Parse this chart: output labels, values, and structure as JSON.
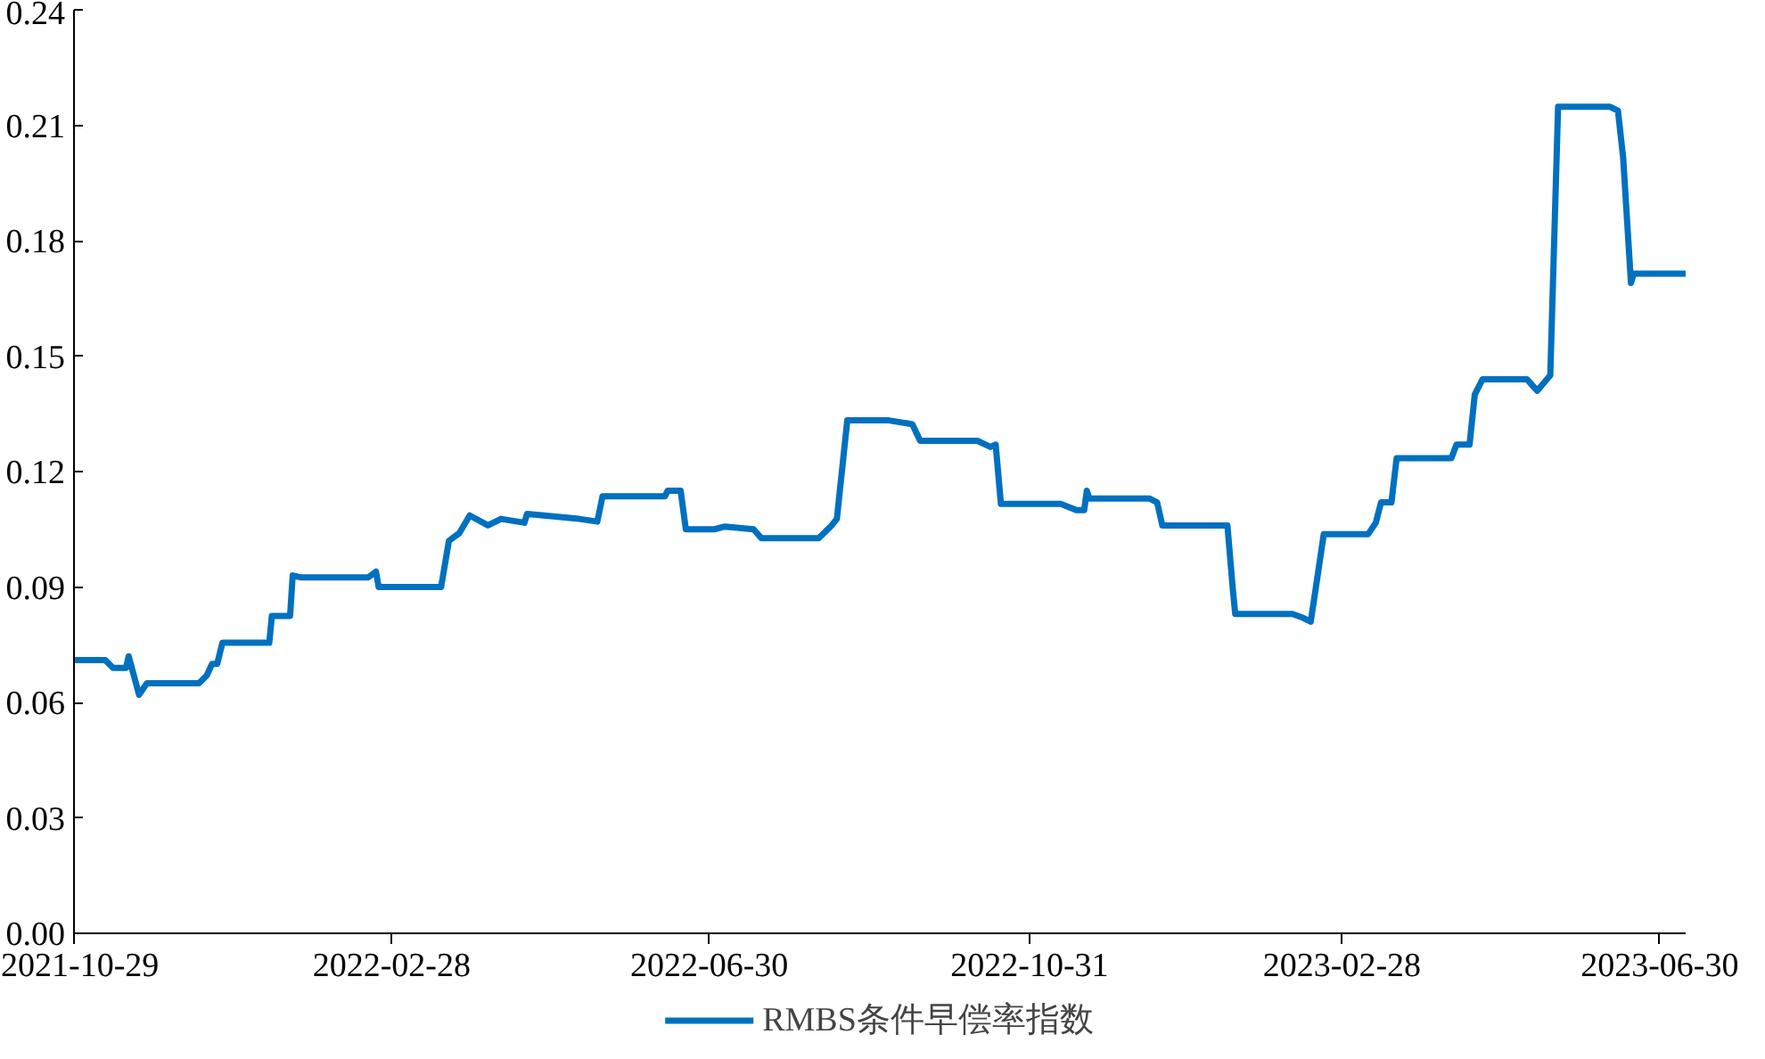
{
  "chart_data": {
    "type": "line",
    "x": [
      "2021-10-29",
      "2021-11-10",
      "2021-11-13",
      "2021-11-18",
      "2021-11-19",
      "2021-11-23",
      "2021-11-26",
      "2021-12-16",
      "2021-12-19",
      "2021-12-21",
      "2021-12-23",
      "2021-12-25",
      "2022-01-12",
      "2022-01-13",
      "2022-01-20",
      "2022-01-21",
      "2022-01-24",
      "2022-02-19",
      "2022-02-22",
      "2022-02-23",
      "2022-03-10",
      "2022-03-19",
      "2022-03-22",
      "2022-03-26",
      "2022-03-30",
      "2022-04-06",
      "2022-04-11",
      "2022-04-20",
      "2022-04-21",
      "2022-05-11",
      "2022-05-18",
      "2022-05-20",
      "2022-06-13",
      "2022-06-14",
      "2022-06-19",
      "2022-06-21",
      "2022-07-02",
      "2022-07-06",
      "2022-07-17",
      "2022-07-20",
      "2022-08-11",
      "2022-08-16",
      "2022-08-18",
      "2022-08-22",
      "2022-09-07",
      "2022-09-16",
      "2022-09-19",
      "2022-10-11",
      "2022-10-16",
      "2022-10-18",
      "2022-10-20",
      "2022-11-12",
      "2022-11-18",
      "2022-11-21",
      "2022-11-22",
      "2022-11-23",
      "2022-12-16",
      "2022-12-19",
      "2022-12-21",
      "2023-01-15",
      "2023-01-17",
      "2023-01-18",
      "2023-02-09",
      "2023-02-13",
      "2023-02-16",
      "2023-02-18",
      "2023-02-21",
      "2023-03-10",
      "2023-03-13",
      "2023-03-15",
      "2023-03-19",
      "2023-03-21",
      "2023-04-11",
      "2023-04-13",
      "2023-04-18",
      "2023-04-20",
      "2023-04-23",
      "2023-05-10",
      "2023-05-14",
      "2023-05-19",
      "2023-05-22",
      "2023-06-11",
      "2023-06-14",
      "2023-06-16",
      "2023-06-19",
      "2023-06-20",
      "2023-07-10"
    ],
    "series": [
      {
        "name": "RMBS条件早偿率指数",
        "color": "#0070c0",
        "values": [
          0.071,
          0.071,
          0.069,
          0.069,
          0.072,
          0.062,
          0.065,
          0.065,
          0.067,
          0.07,
          0.07,
          0.0755,
          0.0755,
          0.0825,
          0.0825,
          0.093,
          0.0925,
          0.0925,
          0.094,
          0.09,
          0.09,
          0.09,
          0.102,
          0.104,
          0.1086,
          0.106,
          0.1077,
          0.1067,
          0.109,
          0.1077,
          0.107,
          0.1136,
          0.1136,
          0.115,
          0.115,
          0.105,
          0.105,
          0.1057,
          0.105,
          0.1027,
          0.1027,
          0.106,
          0.1077,
          0.1333,
          0.1333,
          0.1323,
          0.128,
          0.128,
          0.1264,
          0.127,
          0.1116,
          0.1116,
          0.11,
          0.11,
          0.115,
          0.113,
          0.113,
          0.112,
          0.106,
          0.106,
          0.09,
          0.083,
          0.083,
          0.082,
          0.081,
          0.09,
          0.1037,
          0.1037,
          0.1067,
          0.112,
          0.112,
          0.1235,
          0.1235,
          0.127,
          0.127,
          0.14,
          0.144,
          0.144,
          0.141,
          0.145,
          0.2148,
          0.2148,
          0.2138,
          0.2015,
          0.169,
          0.1714,
          0.1714
        ]
      }
    ],
    "xlim": [
      "2021-10-29",
      "2023-07-10"
    ],
    "xticks": [
      "2021-10-29",
      "2022-02-28",
      "2022-06-30",
      "2022-10-31",
      "2023-02-28",
      "2023-06-30"
    ],
    "ylim": [
      0,
      0.24
    ],
    "yticks": [
      {
        "value": 0,
        "label": "0.00"
      },
      {
        "value": 0.03,
        "label": "0.03"
      },
      {
        "value": 0.06,
        "label": "0.06"
      },
      {
        "value": 0.09,
        "label": "0.09"
      },
      {
        "value": 0.12,
        "label": "0.12"
      },
      {
        "value": 0.15,
        "label": "0.15"
      },
      {
        "value": 0.18,
        "label": "0.18"
      },
      {
        "value": 0.21,
        "label": "0.21"
      },
      {
        "value": 0.24,
        "label": "0.24"
      }
    ],
    "grid": false,
    "legend": "bottom",
    "marker": "none",
    "line_style": "solid"
  }
}
